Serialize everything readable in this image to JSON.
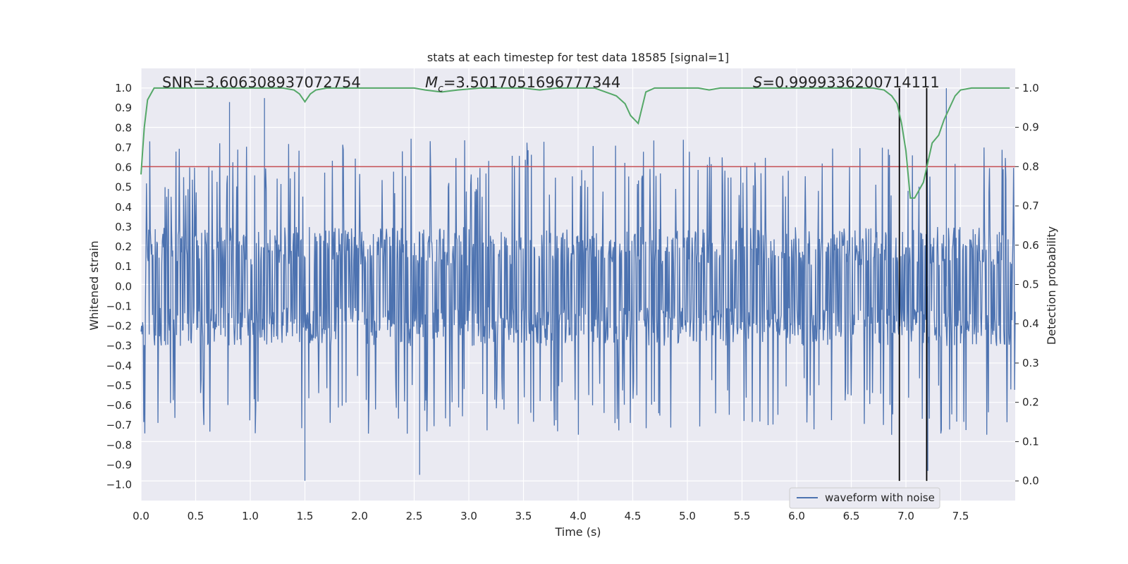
{
  "chart_data": {
    "type": "line",
    "title": "stats at each timestep for test data 18585 [signal=1]",
    "xlabel": "Time (s)",
    "ylabel_left": "Whitened strain",
    "ylabel_right": "Detection probability",
    "xlim": [
      0.0,
      8.0
    ],
    "ylim_left": [
      -1.08,
      1.1
    ],
    "ylim_right": [
      -0.05,
      1.05
    ],
    "x_ticks": [
      "0.0",
      "0.5",
      "1.0",
      "1.5",
      "2.0",
      "2.5",
      "3.0",
      "3.5",
      "4.0",
      "4.5",
      "5.0",
      "5.5",
      "6.0",
      "6.5",
      "7.0",
      "7.5"
    ],
    "y_left_ticks": [
      "1.0",
      "0.9",
      "0.8",
      "0.7",
      "0.6",
      "0.5",
      "0.4",
      "0.3",
      "0.2",
      "0.1",
      "0.0",
      "−0.1",
      "−0.2",
      "−0.3",
      "−0.4",
      "−0.5",
      "−0.6",
      "−0.7",
      "−0.8",
      "−0.9",
      "−1.0"
    ],
    "y_right_ticks": [
      "1.0",
      "0.9",
      "0.8",
      "0.7",
      "0.6",
      "0.5",
      "0.4",
      "0.3",
      "0.2",
      "0.1",
      "0.0"
    ],
    "annotations": {
      "snr": "SNR=3.606308937072754",
      "mc_symbol": "M",
      "mc_sub": "c",
      "mc_value": "=3.5017051696777344",
      "s_symbol": "S",
      "s_value": "=0.9999336200714111"
    },
    "threshold": {
      "value": 0.8,
      "color": "#c44e52"
    },
    "vertical_lines": [
      6.94,
      7.19
    ],
    "waveform": {
      "name": "waveform with noise",
      "color": "#4c72b0",
      "sample_count": 1600,
      "typical_amplitude": 0.3,
      "max": 0.95,
      "min": -0.98
    },
    "detection_probability": {
      "name": "detection probability",
      "color": "#55a868",
      "x": [
        0.0,
        0.03,
        0.06,
        0.12,
        0.3,
        0.6,
        1.0,
        1.3,
        1.4,
        1.45,
        1.5,
        1.55,
        1.6,
        1.7,
        1.9,
        2.2,
        2.5,
        2.6,
        2.75,
        2.9,
        3.1,
        3.3,
        3.5,
        3.65,
        3.8,
        4.0,
        4.15,
        4.25,
        4.3,
        4.35,
        4.43,
        4.48,
        4.55,
        4.62,
        4.7,
        4.9,
        5.1,
        5.2,
        5.3,
        5.5,
        6.0,
        6.5,
        6.7,
        6.8,
        6.87,
        6.92,
        6.96,
        7.0,
        7.04,
        7.08,
        7.12,
        7.16,
        7.2,
        7.24,
        7.3,
        7.35,
        7.4,
        7.45,
        7.5,
        7.6,
        7.8,
        7.95
      ],
      "y": [
        0.78,
        0.9,
        0.97,
        1.0,
        1.0,
        1.0,
        1.0,
        1.0,
        0.995,
        0.985,
        0.965,
        0.985,
        0.995,
        1.0,
        1.0,
        1.0,
        1.0,
        0.995,
        0.99,
        0.995,
        1.0,
        1.0,
        1.0,
        0.995,
        1.0,
        1.0,
        1.0,
        0.99,
        0.985,
        0.98,
        0.96,
        0.93,
        0.91,
        0.99,
        1.0,
        1.0,
        1.0,
        0.995,
        1.0,
        1.0,
        1.0,
        1.0,
        1.0,
        0.995,
        0.98,
        0.96,
        0.91,
        0.84,
        0.72,
        0.72,
        0.74,
        0.76,
        0.81,
        0.86,
        0.88,
        0.92,
        0.95,
        0.98,
        0.995,
        1.0,
        1.0,
        1.0
      ]
    },
    "legend": {
      "label": "waveform with noise",
      "position": "lower-right"
    },
    "colors": {
      "background": "#eaeaf2",
      "grid": "#ffffff",
      "vline": "#000000"
    }
  }
}
